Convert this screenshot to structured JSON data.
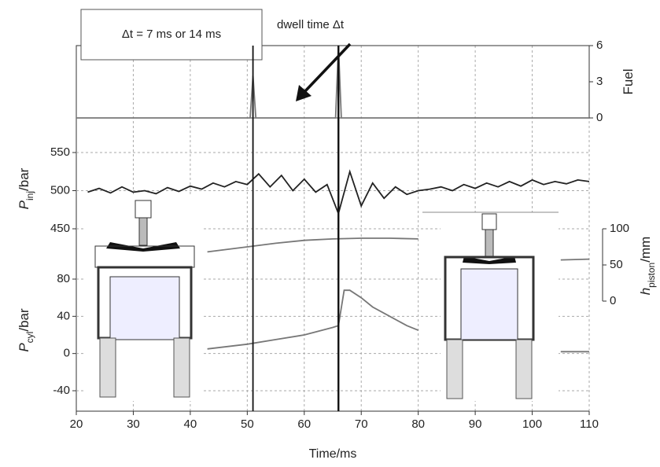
{
  "chart_data": {
    "type": "line",
    "xlabel": "Time/ms",
    "xlim": [
      20,
      110
    ],
    "xticks": [
      20,
      30,
      40,
      50,
      60,
      70,
      80,
      90,
      100,
      110
    ],
    "grid": true,
    "vlines": [
      51,
      66
    ],
    "annotations": [
      "Δt = 7 ms or 14 ms",
      "dwell time Δt"
    ],
    "panels": [
      {
        "type": "line",
        "side": "right",
        "ylim": [
          0,
          6
        ],
        "yticks": [
          0,
          3,
          6
        ],
        "ylabel": {
          "symbol": "Fuel"
        },
        "series": [
          {
            "color": "#777777",
            "x": [
              20,
              50.5,
              51,
              51.5,
              65.5,
              66,
              66.5,
              110
            ],
            "values": [
              0,
              0,
              3.5,
              0,
              0,
              6,
              0,
              0
            ]
          }
        ]
      },
      {
        "type": "line",
        "side": "left",
        "ylim": [
          450,
          550
        ],
        "yticks": [
          450,
          500,
          550
        ],
        "ylabel": {
          "symbol": "P",
          "sub": "inj",
          "unit": "/bar"
        },
        "series": [
          {
            "color": "#222222",
            "x": [
              22,
              24,
              26,
              28,
              30,
              32,
              34,
              36,
              38,
              40,
              42,
              44,
              46,
              48,
              50,
              52,
              54,
              56,
              58,
              60,
              62,
              64,
              66,
              68,
              70,
              72,
              74,
              76,
              78,
              80,
              82,
              84,
              86,
              88,
              90,
              92,
              94,
              96,
              98,
              100,
              102,
              104,
              106,
              108,
              110
            ],
            "values": [
              498,
              503,
              497,
              505,
              498,
              500,
              496,
              504,
              499,
              506,
              502,
              510,
              505,
              512,
              508,
              522,
              505,
              520,
              500,
              515,
              498,
              508,
              470,
              525,
              480,
              510,
              490,
              505,
              495,
              500,
              502,
              505,
              500,
              508,
              503,
              510,
              505,
              512,
              506,
              514,
              508,
              512,
              509,
              514,
              512
            ]
          }
        ]
      },
      {
        "type": "line",
        "side": "right",
        "ylim": [
          0,
          100
        ],
        "yticks": [
          0,
          50,
          100
        ],
        "ylabel": {
          "symbol": "h",
          "sub": "piston",
          "unit": "/mm"
        },
        "series": [
          {
            "color": "#777777",
            "x": [
              43,
              50,
              55,
              60,
              65,
              70,
              75,
              80,
              92,
              105,
              110
            ],
            "values": [
              68,
              75,
              80,
              84,
              86,
              87,
              87,
              86,
              null,
              57,
              58
            ]
          }
        ]
      },
      {
        "type": "line",
        "side": "left",
        "ylim": [
          -40,
          80
        ],
        "yticks": [
          -40,
          0,
          40,
          80
        ],
        "ylabel": {
          "symbol": "P",
          "sub": "cyl",
          "unit": "/bar"
        },
        "series": [
          {
            "color": "#777777",
            "x": [
              43,
              50,
              55,
              60,
              65,
              66,
              67,
              68,
              70,
              72,
              75,
              78,
              80,
              92,
              105,
              110
            ],
            "values": [
              5,
              10,
              15,
              20,
              28,
              30,
              68,
              68,
              60,
              50,
              40,
              30,
              25,
              null,
              2,
              2
            ]
          }
        ]
      }
    ]
  }
}
